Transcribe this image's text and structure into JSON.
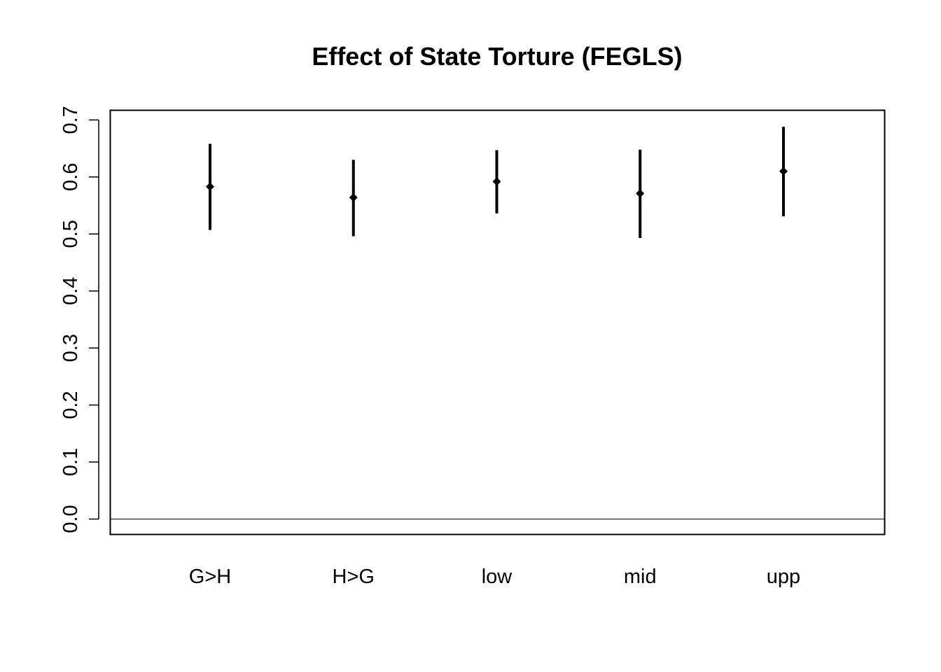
{
  "chart_data": {
    "type": "errorbar",
    "title": "Effect of State Torture (FEGLS)",
    "xlabel": "",
    "ylabel": "",
    "categories": [
      "G>H",
      "H>G",
      "low",
      "mid",
      "upp"
    ],
    "estimates": [
      0.583,
      0.564,
      0.592,
      0.571,
      0.61
    ],
    "lower": [
      0.507,
      0.496,
      0.536,
      0.493,
      0.531
    ],
    "upper": [
      0.658,
      0.63,
      0.647,
      0.648,
      0.688
    ],
    "ylim": [
      -0.027,
      0.717
    ],
    "yticks": [
      "0.0",
      "0.1",
      "0.2",
      "0.3",
      "0.4",
      "0.5",
      "0.6",
      "0.7"
    ],
    "reference_line": 0,
    "grid": false,
    "box": true,
    "colors": {
      "marks": "#000000",
      "background": "#ffffff"
    }
  }
}
